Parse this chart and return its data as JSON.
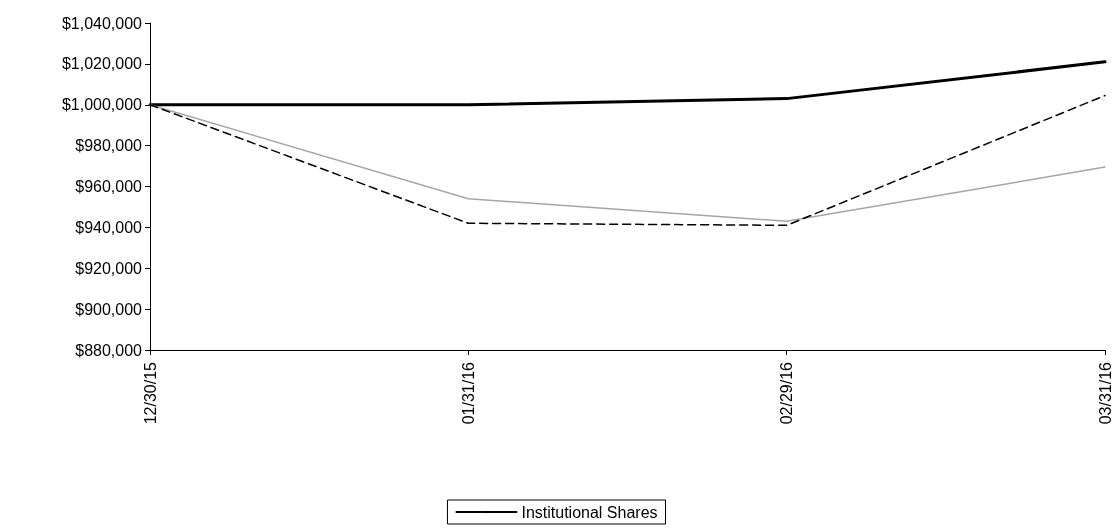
{
  "chart_data": {
    "type": "line",
    "categories": [
      "12/30/15",
      "01/31/16",
      "02/29/16",
      "03/31/16"
    ],
    "series": [
      {
        "name": "Institutional Shares",
        "color": "#000000",
        "line_style": "solid",
        "values": [
          1000000,
          1000000,
          1003000,
          1021000
        ]
      },
      {
        "color": "#a6a6a6",
        "line_style": "solid",
        "values": [
          1000000,
          954000,
          943000,
          969500
        ]
      },
      {
        "color": "#000000",
        "line_style": "dashed",
        "values": [
          1000000,
          942000,
          941000,
          1004500
        ]
      }
    ],
    "ylim": [
      880000,
      1040000
    ],
    "yticks": [
      {
        "value": 880000,
        "label": "$880,000"
      },
      {
        "value": 900000,
        "label": "$900,000"
      },
      {
        "value": 920000,
        "label": "$920,000"
      },
      {
        "value": 940000,
        "label": "$940,000"
      },
      {
        "value": 960000,
        "label": "$960,000"
      },
      {
        "value": 980000,
        "label": "$980,000"
      },
      {
        "value": 1000000,
        "label": "$1,000,000"
      },
      {
        "value": 1020000,
        "label": "$1,020,000"
      },
      {
        "value": 1040000,
        "label": "$1,040,000"
      }
    ],
    "grid": false,
    "legend": "bottom",
    "marker": "none"
  }
}
